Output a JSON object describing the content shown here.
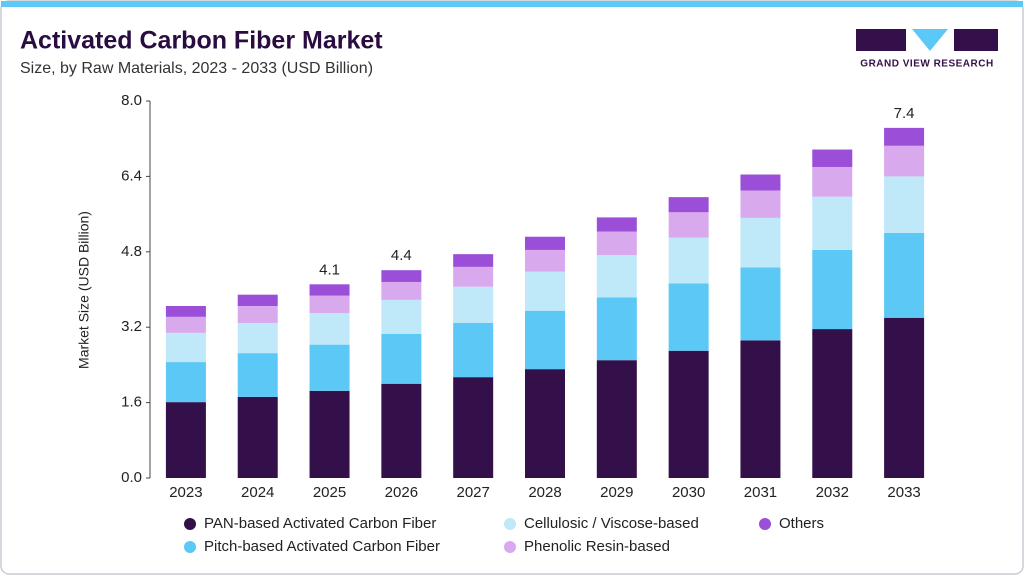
{
  "chart_data": {
    "type": "stacked_bar",
    "title": "Activated Carbon Fiber Market",
    "subtitle": "Size, by Raw Materials, 2023 - 2033 (USD Billion)",
    "logo_text": "GRAND VIEW RESEARCH",
    "y_label": "Market Size (USD Billion)",
    "categories": [
      "2023",
      "2024",
      "2025",
      "2026",
      "2027",
      "2028",
      "2029",
      "2030",
      "2031",
      "2032",
      "2033"
    ],
    "series": [
      {
        "name": "PAN-based Activated Carbon Fiber",
        "color": "#33104a",
        "values": [
          1.61,
          1.72,
          1.85,
          2.0,
          2.14,
          2.31,
          2.5,
          2.7,
          2.92,
          3.16,
          3.4
        ]
      },
      {
        "name": "Pitch-based Activated Carbon Fiber",
        "color": "#5bc8f5",
        "values": [
          0.85,
          0.93,
          0.98,
          1.06,
          1.15,
          1.24,
          1.33,
          1.43,
          1.55,
          1.68,
          1.8
        ]
      },
      {
        "name": "Cellulosic / Viscose-based",
        "color": "#bfe8f9",
        "values": [
          0.62,
          0.64,
          0.67,
          0.72,
          0.77,
          0.83,
          0.9,
          0.97,
          1.05,
          1.13,
          1.2
        ]
      },
      {
        "name": "Phenolic Resin-based",
        "color": "#d8a9ec",
        "values": [
          0.34,
          0.36,
          0.37,
          0.38,
          0.42,
          0.46,
          0.5,
          0.54,
          0.58,
          0.63,
          0.65
        ]
      },
      {
        "name": "Others",
        "color": "#9b4fd8",
        "values": [
          0.23,
          0.24,
          0.24,
          0.25,
          0.27,
          0.28,
          0.3,
          0.32,
          0.34,
          0.37,
          0.38
        ]
      }
    ],
    "total_labels": [
      {
        "category": "2025",
        "text": "4.1"
      },
      {
        "category": "2026",
        "text": "4.4"
      },
      {
        "category": "2033",
        "text": "7.4"
      }
    ],
    "ylim": [
      0,
      8
    ],
    "yticks": [
      {
        "value": 0,
        "label": "0.0"
      },
      {
        "value": 1.6,
        "label": "1.6"
      },
      {
        "value": 3.2,
        "label": "3.2"
      },
      {
        "value": 4.8,
        "label": "4.8"
      },
      {
        "value": 6.4,
        "label": "6.4"
      },
      {
        "value": 8,
        "label": "8.0"
      }
    ]
  }
}
